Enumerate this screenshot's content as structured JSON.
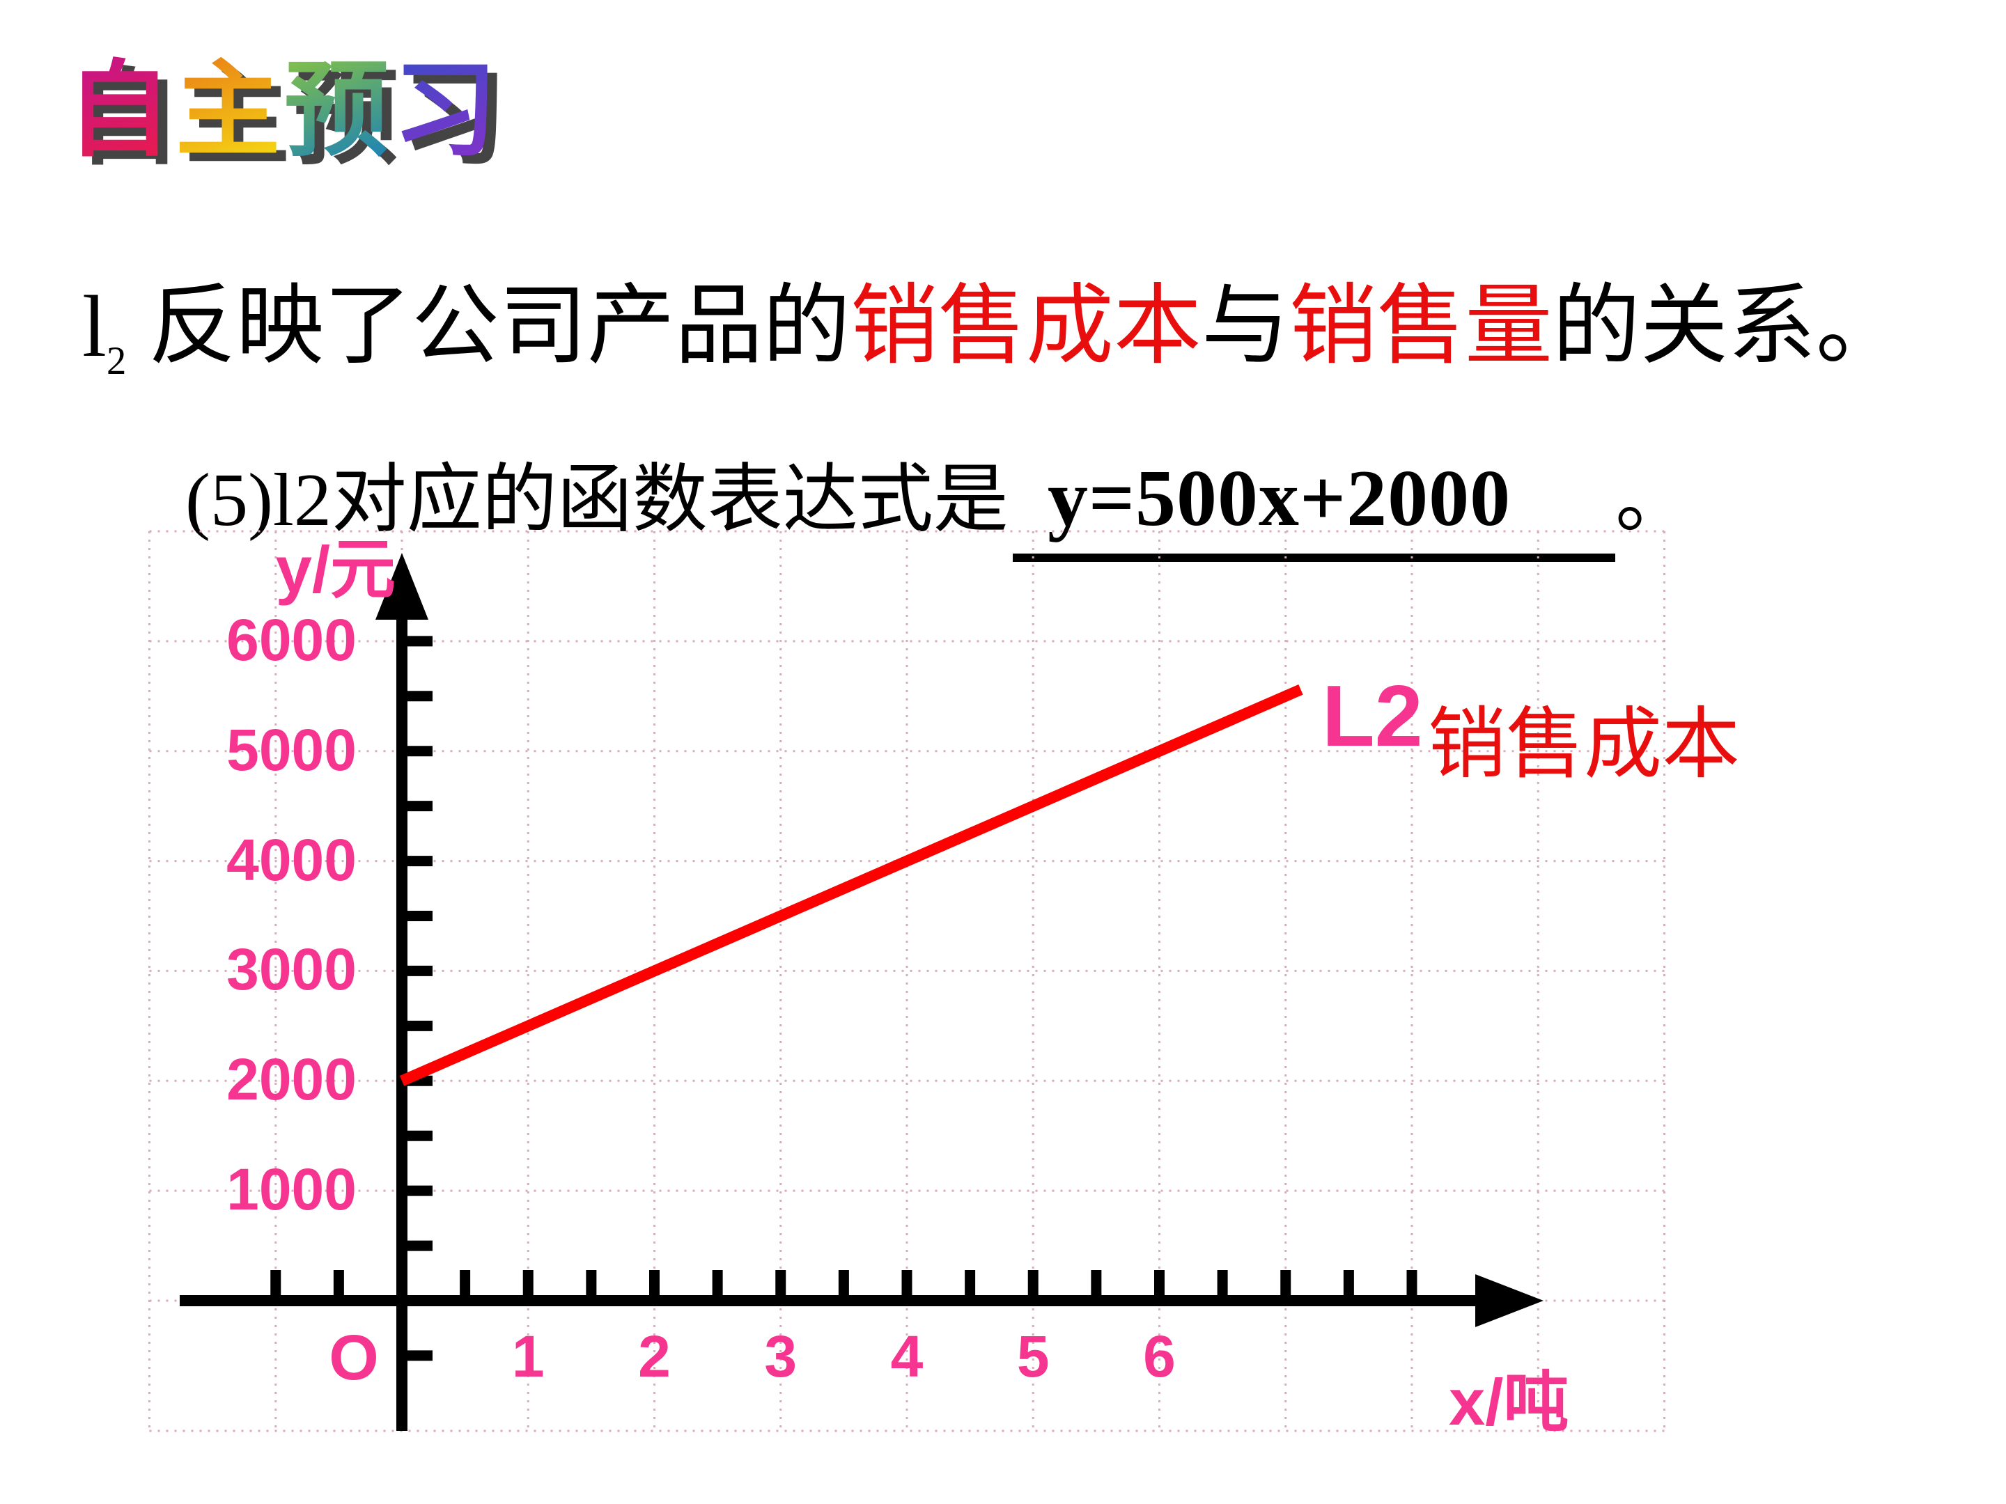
{
  "colors": {
    "pink": "#F5358F",
    "red_text": "#E90E0E",
    "line_red": "#FF0000",
    "grid_dot": "#DDA9BB",
    "axis_black": "#000000",
    "wordart_shadow": "#C3C3C3"
  },
  "title": {
    "text": "自主预习",
    "chars": [
      {
        "char": "自",
        "gradient_from": "#C2158F",
        "gradient_to": "#ED1C44"
      },
      {
        "char": "主",
        "gradient_from": "#E87817",
        "gradient_to": "#F7E313"
      },
      {
        "char": "预",
        "gradient_from": "#8CC63F",
        "gradient_to": "#0E7AC4"
      },
      {
        "char": "习",
        "gradient_from": "#3B4BC8",
        "gradient_to": "#8B2FC9"
      }
    ]
  },
  "line1": {
    "lead": "l",
    "lead_sub": "2",
    "segments": [
      {
        "text": " 反映了公司产品的",
        "color": "black"
      },
      {
        "text": "销售成本",
        "color": "red"
      },
      {
        "text": "与",
        "color": "black"
      },
      {
        "text": "销售量",
        "color": "red"
      },
      {
        "text": "的关系。",
        "color": "black"
      }
    ]
  },
  "question": {
    "label": "(5)l2对应的函数表达式是",
    "answer": "y=500x+2000",
    "period": "。"
  },
  "chart_data": {
    "type": "line",
    "title": "",
    "xlabel": "x/吨",
    "ylabel": "y/元",
    "origin_label": "O",
    "x_axis": {
      "tick_labels": [
        1,
        2,
        3,
        4,
        5,
        6
      ],
      "minor_tick_step": 0.5,
      "tick_range": [
        -1,
        8
      ],
      "grid_range": [
        -2,
        10
      ],
      "grid_step": 1
    },
    "y_axis": {
      "tick_labels": [
        1000,
        2000,
        3000,
        4000,
        5000,
        6000
      ],
      "minor_tick_step": 500,
      "tick_range": [
        -500,
        6000
      ],
      "grid_range": [
        0,
        7000
      ],
      "grid_step": 1000
    },
    "grid": true,
    "legend_position": "right-of-line-end",
    "series": [
      {
        "name": "L2",
        "caption": "销售成本",
        "color": "#FF0000",
        "equation": "y=500x+2000",
        "points": [
          [
            0,
            2000
          ],
          [
            7.12,
            5560
          ]
        ]
      }
    ]
  }
}
